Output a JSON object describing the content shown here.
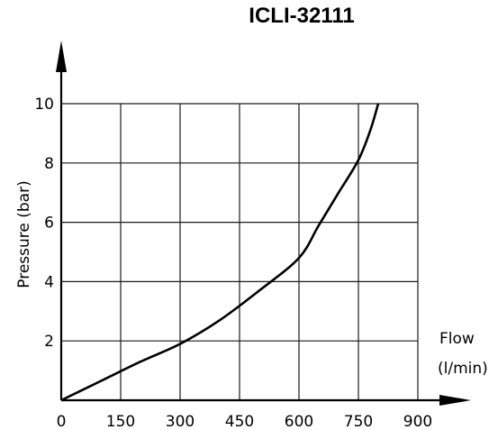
{
  "chart_data": {
    "type": "line",
    "title": "ICLI-32111",
    "xlabel": [
      "Flow",
      "(l/min)"
    ],
    "ylabel": "Pressure (bar)",
    "xlim": [
      0,
      900
    ],
    "ylim": [
      0,
      10
    ],
    "x_ticks": [
      "0",
      "150",
      "300",
      "450",
      "600",
      "750",
      "900"
    ],
    "y_ticks": [
      "2",
      "4",
      "6",
      "8",
      "10"
    ],
    "grid": true,
    "series": [
      {
        "x": [
          0,
          100,
          200,
          300,
          400,
          500,
          600,
          650,
          700,
          750,
          780,
          800
        ],
        "y": [
          0,
          0.65,
          1.3,
          1.9,
          2.7,
          3.7,
          4.8,
          5.9,
          7.0,
          8.1,
          9.1,
          10.0
        ],
        "color": "#000000"
      }
    ]
  }
}
